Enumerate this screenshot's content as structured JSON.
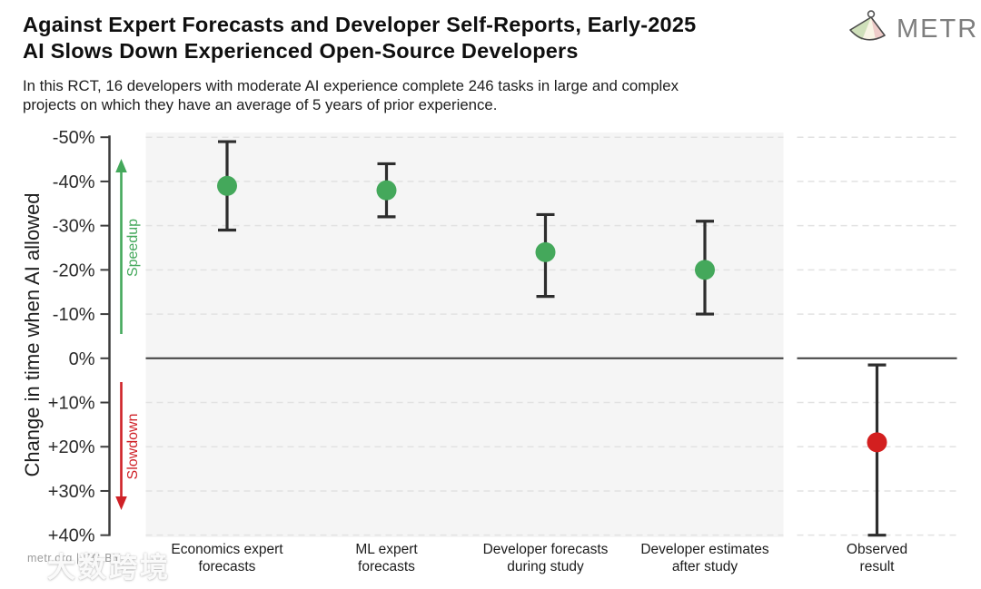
{
  "header": {
    "title_line1": "Against Expert Forecasts and Developer Self-Reports, Early-2025",
    "title_line2": "AI Slows Down Experienced Open-Source Developers",
    "subtitle_line1": "In this RCT, 16 developers with moderate AI experience complete 246 tasks in large and complex",
    "subtitle_line2": "projects on which they have an average of 5 years of prior experience.",
    "logo_text": "METR"
  },
  "chart_data": {
    "type": "scatter",
    "title": "Against Expert Forecasts and Developer Self-Reports, Early-2025 AI Slows Down Experienced Open-Source Developers",
    "ylabel": "Change in time when AI allowed",
    "ylim": [
      -50,
      40
    ],
    "y_axis_inverted": true,
    "grid": "dashed-horizontal",
    "zero_line_value": 0,
    "y_ticks": [
      {
        "value": -50,
        "label": "-50%"
      },
      {
        "value": -40,
        "label": "-40%"
      },
      {
        "value": -30,
        "label": "-30%"
      },
      {
        "value": -20,
        "label": "-20%"
      },
      {
        "value": -10,
        "label": "-10%"
      },
      {
        "value": 0,
        "label": "0%"
      },
      {
        "value": 10,
        "label": "+10%"
      },
      {
        "value": 20,
        "label": "+20%"
      },
      {
        "value": 30,
        "label": "+30%"
      },
      {
        "value": 40,
        "label": "+40%"
      }
    ],
    "direction_annotations": [
      {
        "label": "Speedup",
        "direction": "up",
        "color": "#44a85b"
      },
      {
        "label": "Slowdown",
        "direction": "down",
        "color": "#cf2127"
      }
    ],
    "points": [
      {
        "label_lines": [
          "Economics expert",
          "forecasts"
        ],
        "value": -39,
        "ci": [
          -49,
          -29
        ],
        "color": "#44a85b",
        "panel": "forecasts"
      },
      {
        "label_lines": [
          "ML expert",
          "forecasts"
        ],
        "value": -38,
        "ci": [
          -44,
          -32
        ],
        "color": "#44a85b",
        "panel": "forecasts"
      },
      {
        "label_lines": [
          "Developer forecasts",
          "during study"
        ],
        "value": -24,
        "ci": [
          -32.5,
          -14
        ],
        "color": "#44a85b",
        "panel": "forecasts"
      },
      {
        "label_lines": [
          "Developer estimates",
          "after study"
        ],
        "value": -20,
        "ci": [
          -31,
          -10
        ],
        "color": "#44a85b",
        "panel": "forecasts"
      },
      {
        "label_lines": [
          "Observed",
          "result"
        ],
        "value": 19,
        "ci": [
          1.5,
          40
        ],
        "color": "#d31f1f",
        "panel": "observed"
      }
    ],
    "colors": {
      "forecast_panel_bg": "#f5f5f5",
      "observed_panel_bg": "#ffffff",
      "gridline": "#e2e2e2",
      "axis": "#3d3d3d",
      "error_bar": "#2d2d2d",
      "tick_label": "#2b2b2b",
      "category_label": "#1c1c1c"
    }
  },
  "watermark": {
    "source_text": "metr.org | CC-BY",
    "overlay_text": "大数跨境"
  }
}
